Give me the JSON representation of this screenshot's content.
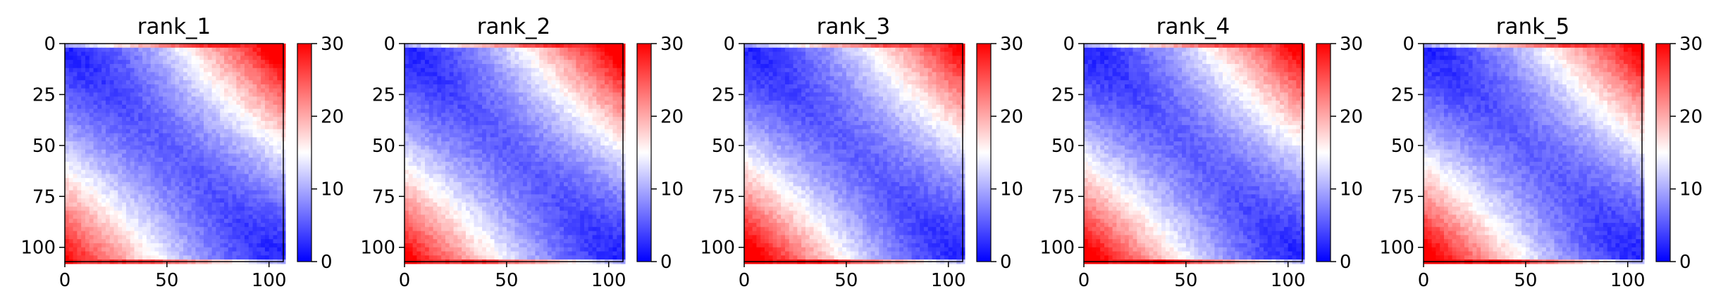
{
  "chart_data": [
    {
      "type": "heatmap",
      "title": "rank_1",
      "xlabel": "",
      "ylabel": "",
      "x_ticks": [
        "0",
        "50",
        "100"
      ],
      "y_ticks": [
        "0",
        "25",
        "50",
        "75",
        "100"
      ],
      "xlim": [
        0,
        107
      ],
      "ylim": [
        107,
        0
      ],
      "matrix_size": 107,
      "colorbar": {
        "vmin": 0,
        "vmax": 30,
        "ticks": [
          "0",
          "10",
          "20",
          "30"
        ],
        "colormap": "bwr",
        "colors": [
          "#0000ff",
          "#ffffff",
          "#ff0000"
        ]
      },
      "pattern": {
        "description_values": "distance-like matrix: near 0 on the diagonal, rising toward 30 at far corners",
        "top_right_corner_level": 30,
        "bottom_left_corner_level": 26,
        "top_edge_rows_level": 28,
        "bottom_edge_rows_level": 27
      }
    },
    {
      "type": "heatmap",
      "title": "rank_2",
      "xlabel": "",
      "ylabel": "",
      "x_ticks": [
        "0",
        "50",
        "100"
      ],
      "y_ticks": [
        "0",
        "25",
        "50",
        "75",
        "100"
      ],
      "xlim": [
        0,
        107
      ],
      "ylim": [
        107,
        0
      ],
      "matrix_size": 107,
      "colorbar": {
        "vmin": 0,
        "vmax": 30,
        "ticks": [
          "0",
          "10",
          "20",
          "30"
        ],
        "colormap": "bwr",
        "colors": [
          "#0000ff",
          "#ffffff",
          "#ff0000"
        ]
      },
      "pattern": {
        "top_right_corner_level": 30,
        "bottom_left_corner_level": 27,
        "top_edge_rows_level": 28,
        "bottom_edge_rows_level": 27
      }
    },
    {
      "type": "heatmap",
      "title": "rank_3",
      "xlabel": "",
      "ylabel": "",
      "x_ticks": [
        "0",
        "50",
        "100"
      ],
      "y_ticks": [
        "0",
        "25",
        "50",
        "75",
        "100"
      ],
      "xlim": [
        0,
        107
      ],
      "ylim": [
        107,
        0
      ],
      "matrix_size": 107,
      "colorbar": {
        "vmin": 0,
        "vmax": 30,
        "ticks": [
          "0",
          "10",
          "20",
          "30"
        ],
        "colormap": "bwr",
        "colors": [
          "#0000ff",
          "#ffffff",
          "#ff0000"
        ]
      },
      "pattern": {
        "top_right_corner_level": 27,
        "bottom_left_corner_level": 30,
        "top_edge_rows_level": 26,
        "bottom_edge_rows_level": 29
      }
    },
    {
      "type": "heatmap",
      "title": "rank_4",
      "xlabel": "",
      "ylabel": "",
      "x_ticks": [
        "0",
        "50",
        "100"
      ],
      "y_ticks": [
        "0",
        "25",
        "50",
        "75",
        "100"
      ],
      "xlim": [
        0,
        107
      ],
      "ylim": [
        107,
        0
      ],
      "matrix_size": 107,
      "colorbar": {
        "vmin": 0,
        "vmax": 30,
        "ticks": [
          "0",
          "10",
          "20",
          "30"
        ],
        "colormap": "bwr",
        "colors": [
          "#0000ff",
          "#ffffff",
          "#ff0000"
        ]
      },
      "pattern": {
        "top_right_corner_level": 28,
        "bottom_left_corner_level": 29,
        "top_edge_rows_level": 27,
        "bottom_edge_rows_level": 29
      }
    },
    {
      "type": "heatmap",
      "title": "rank_5",
      "xlabel": "",
      "ylabel": "",
      "x_ticks": [
        "0",
        "50",
        "100"
      ],
      "y_ticks": [
        "0",
        "25",
        "50",
        "75",
        "100"
      ],
      "xlim": [
        0,
        107
      ],
      "ylim": [
        107,
        0
      ],
      "matrix_size": 107,
      "colorbar": {
        "vmin": 0,
        "vmax": 30,
        "ticks": [
          "0",
          "10",
          "20",
          "30"
        ],
        "colormap": "bwr",
        "colors": [
          "#0000ff",
          "#ffffff",
          "#ff0000"
        ]
      },
      "pattern": {
        "top_right_corner_level": 28,
        "bottom_left_corner_level": 29,
        "top_edge_rows_level": 27,
        "bottom_edge_rows_level": 29
      }
    }
  ]
}
